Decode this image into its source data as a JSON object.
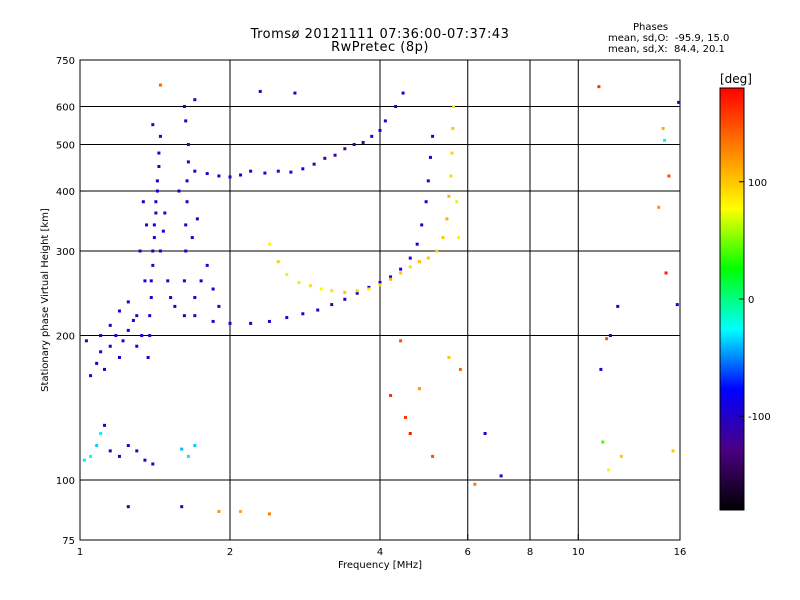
{
  "header": {
    "title_line1": "Tromsø 20121111 07:36:00-07:37:43",
    "title_line2": "RwPretec (8p)",
    "stats_heading": "Phases",
    "stats_line1": "mean, sd,O:  -95.9, 15.0",
    "stats_line2": "mean, sd,X:  84.4, 20.1"
  },
  "chart_data": {
    "type": "scatter",
    "title": "Tromsø 20121111 07:36:00-07:37:43",
    "subtitle": "RwPretec (8p)",
    "xlabel": "Frequency [MHz]",
    "ylabel": "Stationary phase Virtual Height [km]",
    "x_scale": "log",
    "y_scale": "log",
    "xlim": [
      1,
      16
    ],
    "ylim": [
      75,
      750
    ],
    "x_ticks": [
      1,
      2,
      4,
      6,
      8,
      10,
      16
    ],
    "y_ticks": [
      75,
      100,
      200,
      300,
      400,
      500,
      600,
      750
    ],
    "grid": true,
    "colorbar": {
      "unit": "[deg]",
      "ticks": [
        100,
        0,
        -100
      ],
      "range": [
        -180,
        180
      ],
      "colors": [
        "#000000",
        "#4b0082",
        "#0000ff",
        "#00ffff",
        "#00ff00",
        "#ffff00",
        "#ff8000",
        "#ff0000"
      ]
    },
    "series": [
      {
        "trace": "low-frequency column",
        "points": [
          [
            1.37,
            180,
            -95
          ],
          [
            1.38,
            200,
            -100
          ],
          [
            1.38,
            220,
            -92
          ],
          [
            1.39,
            240,
            -100
          ],
          [
            1.39,
            260,
            -98
          ],
          [
            1.4,
            280,
            -105
          ],
          [
            1.4,
            300,
            -95
          ],
          [
            1.41,
            320,
            -100
          ],
          [
            1.41,
            340,
            -92
          ],
          [
            1.42,
            360,
            -98
          ],
          [
            1.42,
            380,
            -103
          ],
          [
            1.43,
            400,
            -96
          ],
          [
            1.43,
            420,
            -100
          ],
          [
            1.44,
            450,
            -94
          ],
          [
            1.44,
            480,
            -100
          ],
          [
            1.45,
            520,
            -97
          ],
          [
            1.4,
            550,
            -100
          ],
          [
            1.33,
            200,
            -95
          ],
          [
            1.3,
            220,
            -100
          ],
          [
            1.35,
            260,
            -92
          ],
          [
            1.32,
            300,
            -96
          ],
          [
            1.36,
            340,
            -101
          ],
          [
            1.34,
            380,
            -95
          ],
          [
            1.45,
            300,
            -90
          ],
          [
            1.47,
            330,
            -98
          ],
          [
            1.48,
            360,
            -95
          ],
          [
            1.5,
            260,
            -100
          ],
          [
            1.52,
            240,
            -96
          ]
        ]
      },
      {
        "trace": "low-frequency lower branch",
        "points": [
          [
            1.05,
            165,
            -100
          ],
          [
            1.08,
            175,
            -98
          ],
          [
            1.1,
            185,
            -95
          ],
          [
            1.12,
            170,
            -100
          ],
          [
            1.15,
            190,
            -102
          ],
          [
            1.18,
            200,
            -96
          ],
          [
            1.2,
            180,
            -100
          ],
          [
            1.22,
            195,
            -95
          ],
          [
            1.25,
            205,
            -98
          ],
          [
            1.28,
            215,
            -100
          ],
          [
            1.3,
            190,
            -97
          ],
          [
            1.1,
            200,
            -92
          ],
          [
            1.15,
            210,
            -100
          ],
          [
            1.2,
            225,
            -96
          ],
          [
            1.25,
            235,
            -99
          ],
          [
            1.03,
            195,
            -100
          ]
        ]
      },
      {
        "trace": "second column",
        "points": [
          [
            1.62,
            220,
            -100
          ],
          [
            1.62,
            260,
            -96
          ],
          [
            1.63,
            300,
            -100
          ],
          [
            1.63,
            340,
            -95
          ],
          [
            1.64,
            380,
            -98
          ],
          [
            1.64,
            420,
            -100
          ],
          [
            1.65,
            460,
            -96
          ],
          [
            1.65,
            500,
            -99
          ],
          [
            1.63,
            560,
            -100
          ],
          [
            1.62,
            600,
            -95
          ],
          [
            1.7,
            240,
            -98
          ],
          [
            1.75,
            260,
            -100
          ],
          [
            1.8,
            280,
            -95
          ],
          [
            1.85,
            250,
            -98
          ],
          [
            1.9,
            230,
            -100
          ],
          [
            1.68,
            320,
            -96
          ],
          [
            1.72,
            350,
            -100
          ],
          [
            1.58,
            400,
            -98
          ]
        ]
      },
      {
        "trace": "F-layer upper plateau",
        "points": [
          [
            1.7,
            440,
            -96
          ],
          [
            1.8,
            435,
            -100
          ],
          [
            1.9,
            430,
            -95
          ],
          [
            2.0,
            428,
            -99
          ],
          [
            2.1,
            432,
            -100
          ],
          [
            2.2,
            440,
            -96
          ],
          [
            2.35,
            436,
            -98
          ],
          [
            2.5,
            440,
            -100
          ],
          [
            2.65,
            438,
            -95
          ],
          [
            2.8,
            445,
            -97
          ],
          [
            2.95,
            455,
            -120
          ],
          [
            3.1,
            468,
            -125
          ],
          [
            3.25,
            475,
            -118
          ],
          [
            3.4,
            490,
            -122
          ],
          [
            3.55,
            500,
            -115
          ],
          [
            3.7,
            505,
            -110
          ],
          [
            3.85,
            520,
            -100
          ],
          [
            4.0,
            535,
            -98
          ],
          [
            4.1,
            560,
            -96
          ],
          [
            4.3,
            600,
            -100
          ],
          [
            4.45,
            640,
            -98
          ]
        ]
      },
      {
        "trace": "F-layer lower trace (O-mode)",
        "points": [
          [
            1.55,
            230,
            -95
          ],
          [
            1.7,
            220,
            -100
          ],
          [
            1.85,
            214,
            -98
          ],
          [
            2.0,
            212,
            -100
          ],
          [
            2.2,
            212,
            -96
          ],
          [
            2.4,
            214,
            -99
          ],
          [
            2.6,
            218,
            -100
          ],
          [
            2.8,
            222,
            -95
          ],
          [
            3.0,
            226,
            -98
          ],
          [
            3.2,
            232,
            -120
          ],
          [
            3.4,
            238,
            -100
          ],
          [
            3.6,
            245,
            -98
          ],
          [
            3.8,
            252,
            -96
          ],
          [
            4.0,
            258,
            -100
          ],
          [
            4.2,
            265,
            -98
          ],
          [
            4.4,
            275,
            -95
          ],
          [
            4.6,
            290,
            -100
          ],
          [
            4.75,
            310,
            -97
          ],
          [
            4.85,
            340,
            -100
          ],
          [
            4.95,
            380,
            -96
          ],
          [
            5.0,
            420,
            -99
          ],
          [
            5.05,
            470,
            -100
          ],
          [
            5.1,
            520,
            -95
          ]
        ]
      },
      {
        "trace": "F-layer X-mode",
        "points": [
          [
            2.4,
            310,
            80
          ],
          [
            2.5,
            285,
            95
          ],
          [
            2.6,
            268,
            70
          ],
          [
            2.75,
            258,
            85
          ],
          [
            2.9,
            254,
            90
          ],
          [
            3.05,
            250,
            78
          ],
          [
            3.2,
            248,
            88
          ],
          [
            3.4,
            246,
            100
          ],
          [
            3.6,
            248,
            92
          ],
          [
            3.8,
            250,
            85
          ],
          [
            4.0,
            255,
            95
          ],
          [
            4.2,
            262,
            110
          ],
          [
            4.4,
            270,
            100
          ],
          [
            4.6,
            278,
            90
          ],
          [
            4.8,
            285,
            105
          ],
          [
            5.0,
            290,
            100
          ],
          [
            5.2,
            300,
            95
          ],
          [
            5.35,
            320,
            100
          ],
          [
            5.45,
            350,
            110
          ],
          [
            5.5,
            390,
            105
          ],
          [
            5.55,
            430,
            90
          ],
          [
            5.58,
            480,
            95
          ],
          [
            5.6,
            540,
            100
          ],
          [
            5.62,
            600,
            85
          ],
          [
            5.7,
            380,
            70
          ],
          [
            5.75,
            320,
            80
          ]
        ]
      },
      {
        "trace": "low-height E returns",
        "points": [
          [
            1.02,
            110,
            -30
          ],
          [
            1.05,
            112,
            -25
          ],
          [
            1.08,
            118,
            -35
          ],
          [
            1.1,
            125,
            -28
          ],
          [
            1.12,
            130,
            -100
          ],
          [
            1.15,
            115,
            -95
          ],
          [
            1.2,
            112,
            -100
          ],
          [
            1.25,
            118,
            -98
          ],
          [
            1.3,
            115,
            -100
          ],
          [
            1.35,
            110,
            -96
          ],
          [
            1.4,
            108,
            -100
          ],
          [
            1.6,
            116,
            -40
          ],
          [
            1.65,
            112,
            -30
          ],
          [
            1.7,
            118,
            -35
          ],
          [
            1.25,
            88,
            -100
          ],
          [
            1.6,
            88,
            -100
          ],
          [
            1.9,
            86,
            120
          ],
          [
            2.1,
            86,
            110
          ],
          [
            2.4,
            85,
            130
          ]
        ]
      },
      {
        "trace": "scattered noise",
        "points": [
          [
            1.45,
            665,
            140
          ],
          [
            1.7,
            620,
            -100
          ],
          [
            2.3,
            645,
            -100
          ],
          [
            2.7,
            640,
            -100
          ],
          [
            4.4,
            195,
            150
          ],
          [
            4.5,
            135,
            160
          ],
          [
            4.6,
            125,
            170
          ],
          [
            4.8,
            155,
            120
          ],
          [
            5.1,
            112,
            150
          ],
          [
            5.5,
            180,
            100
          ],
          [
            5.8,
            170,
            140
          ],
          [
            6.2,
            98,
            130
          ],
          [
            6.5,
            125,
            -100
          ],
          [
            7.0,
            102,
            -100
          ],
          [
            11.0,
            660,
            160
          ],
          [
            11.1,
            170,
            -100
          ],
          [
            11.2,
            120,
            40
          ],
          [
            11.4,
            197,
            150
          ],
          [
            11.6,
            200,
            -100
          ],
          [
            12.0,
            230,
            -100
          ],
          [
            12.2,
            112,
            100
          ],
          [
            14.5,
            370,
            120
          ],
          [
            14.8,
            540,
            110
          ],
          [
            14.9,
            510,
            -20
          ],
          [
            15.0,
            270,
            170
          ],
          [
            15.2,
            430,
            150
          ],
          [
            15.5,
            115,
            100
          ],
          [
            15.8,
            232,
            -100
          ],
          [
            15.9,
            612,
            -100
          ],
          [
            11.5,
            105,
            80
          ],
          [
            4.2,
            150,
            160
          ]
        ]
      }
    ]
  }
}
